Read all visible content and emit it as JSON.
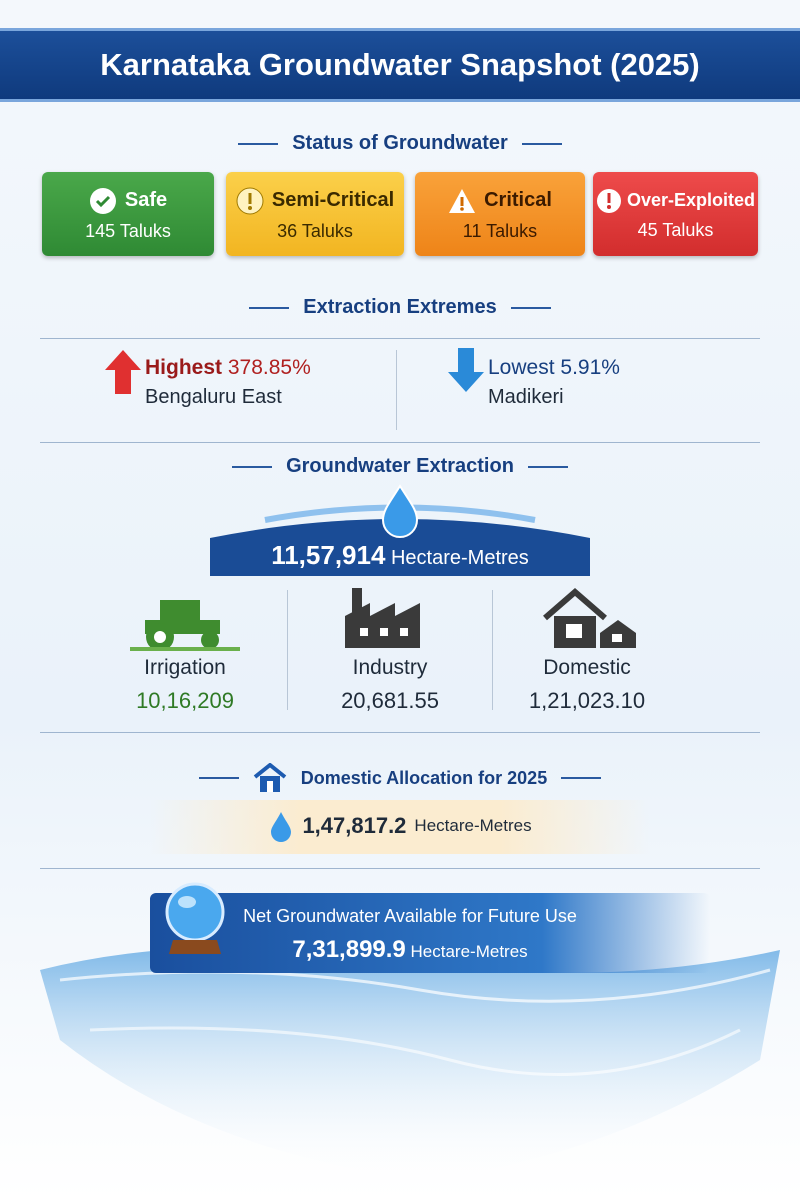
{
  "title": "Karnataka Groundwater Snapshot (2025)",
  "status": {
    "heading": "Status of Groundwater",
    "categories": [
      {
        "name": "Safe",
        "count": "145 Taluks"
      },
      {
        "name": "Semi-Critical",
        "count": "36 Taluks"
      },
      {
        "name": "Critical",
        "count": "11 Taluks"
      },
      {
        "name": "Over-Exploited",
        "count": "45 Taluks"
      }
    ]
  },
  "extremes": {
    "heading": "Extraction Extremes",
    "highest": {
      "label": "Highest",
      "value": "378.85%",
      "place": "Bengaluru East"
    },
    "lowest": {
      "label": "Lowest",
      "value": "5.91%",
      "place": "Madikeri"
    }
  },
  "extraction": {
    "heading": "Groundwater Extraction",
    "total": {
      "value": "11,57,914",
      "unit": "Hectare-Metres"
    },
    "uses": [
      {
        "name": "Irrigation",
        "value": "10,16,209"
      },
      {
        "name": "Industry",
        "value": "20,681.55"
      },
      {
        "name": "Domestic",
        "value": "1,21,023.10"
      }
    ]
  },
  "domestic_allocation": {
    "heading": "Domestic Allocation for 2025",
    "value": "1,47,817.2",
    "unit": "Hectare-Metres"
  },
  "future": {
    "heading": "Net Groundwater Available for Future Use",
    "value": "7,31,899.9",
    "unit": "Hectare-Metres"
  }
}
